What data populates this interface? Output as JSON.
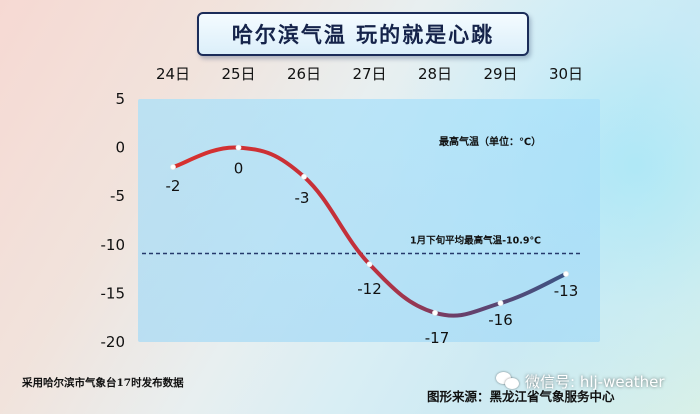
{
  "title": "哈尔滨气温 玩的就是心跳",
  "chart_data": {
    "type": "line",
    "x": [
      "24日",
      "25日",
      "26日",
      "27日",
      "28日",
      "29日",
      "30日"
    ],
    "series": [
      {
        "values": [
          -2,
          0,
          -3,
          -12,
          -17,
          -16,
          -13
        ]
      }
    ],
    "data_labels": [
      "-2",
      "0",
      "-3",
      "-12",
      "-17",
      "-16",
      "-13"
    ],
    "ylim": [
      -20,
      5
    ],
    "yticks": [
      "5",
      "0",
      "-5",
      "-10",
      "-15",
      "-20"
    ],
    "ytick_values": [
      5,
      0,
      -5,
      -10,
      -15,
      -20
    ],
    "annotations": {
      "series_label": "最高气温（单位：℃）",
      "reference_label": "1月下旬平均最高气温-10.9℃",
      "reference_value": -10.9
    },
    "colors": {
      "warm": "#e0302d",
      "cold": "#3f4f80",
      "reference": "#25396b"
    }
  },
  "footer": {
    "source_note": "采用哈尔滨市气象台17时发布数据",
    "credit": "图形来源：黑龙江省气象服务中心",
    "watermark": "微信号: hlj-weather",
    "watermark_icon": "wechat-icon"
  }
}
